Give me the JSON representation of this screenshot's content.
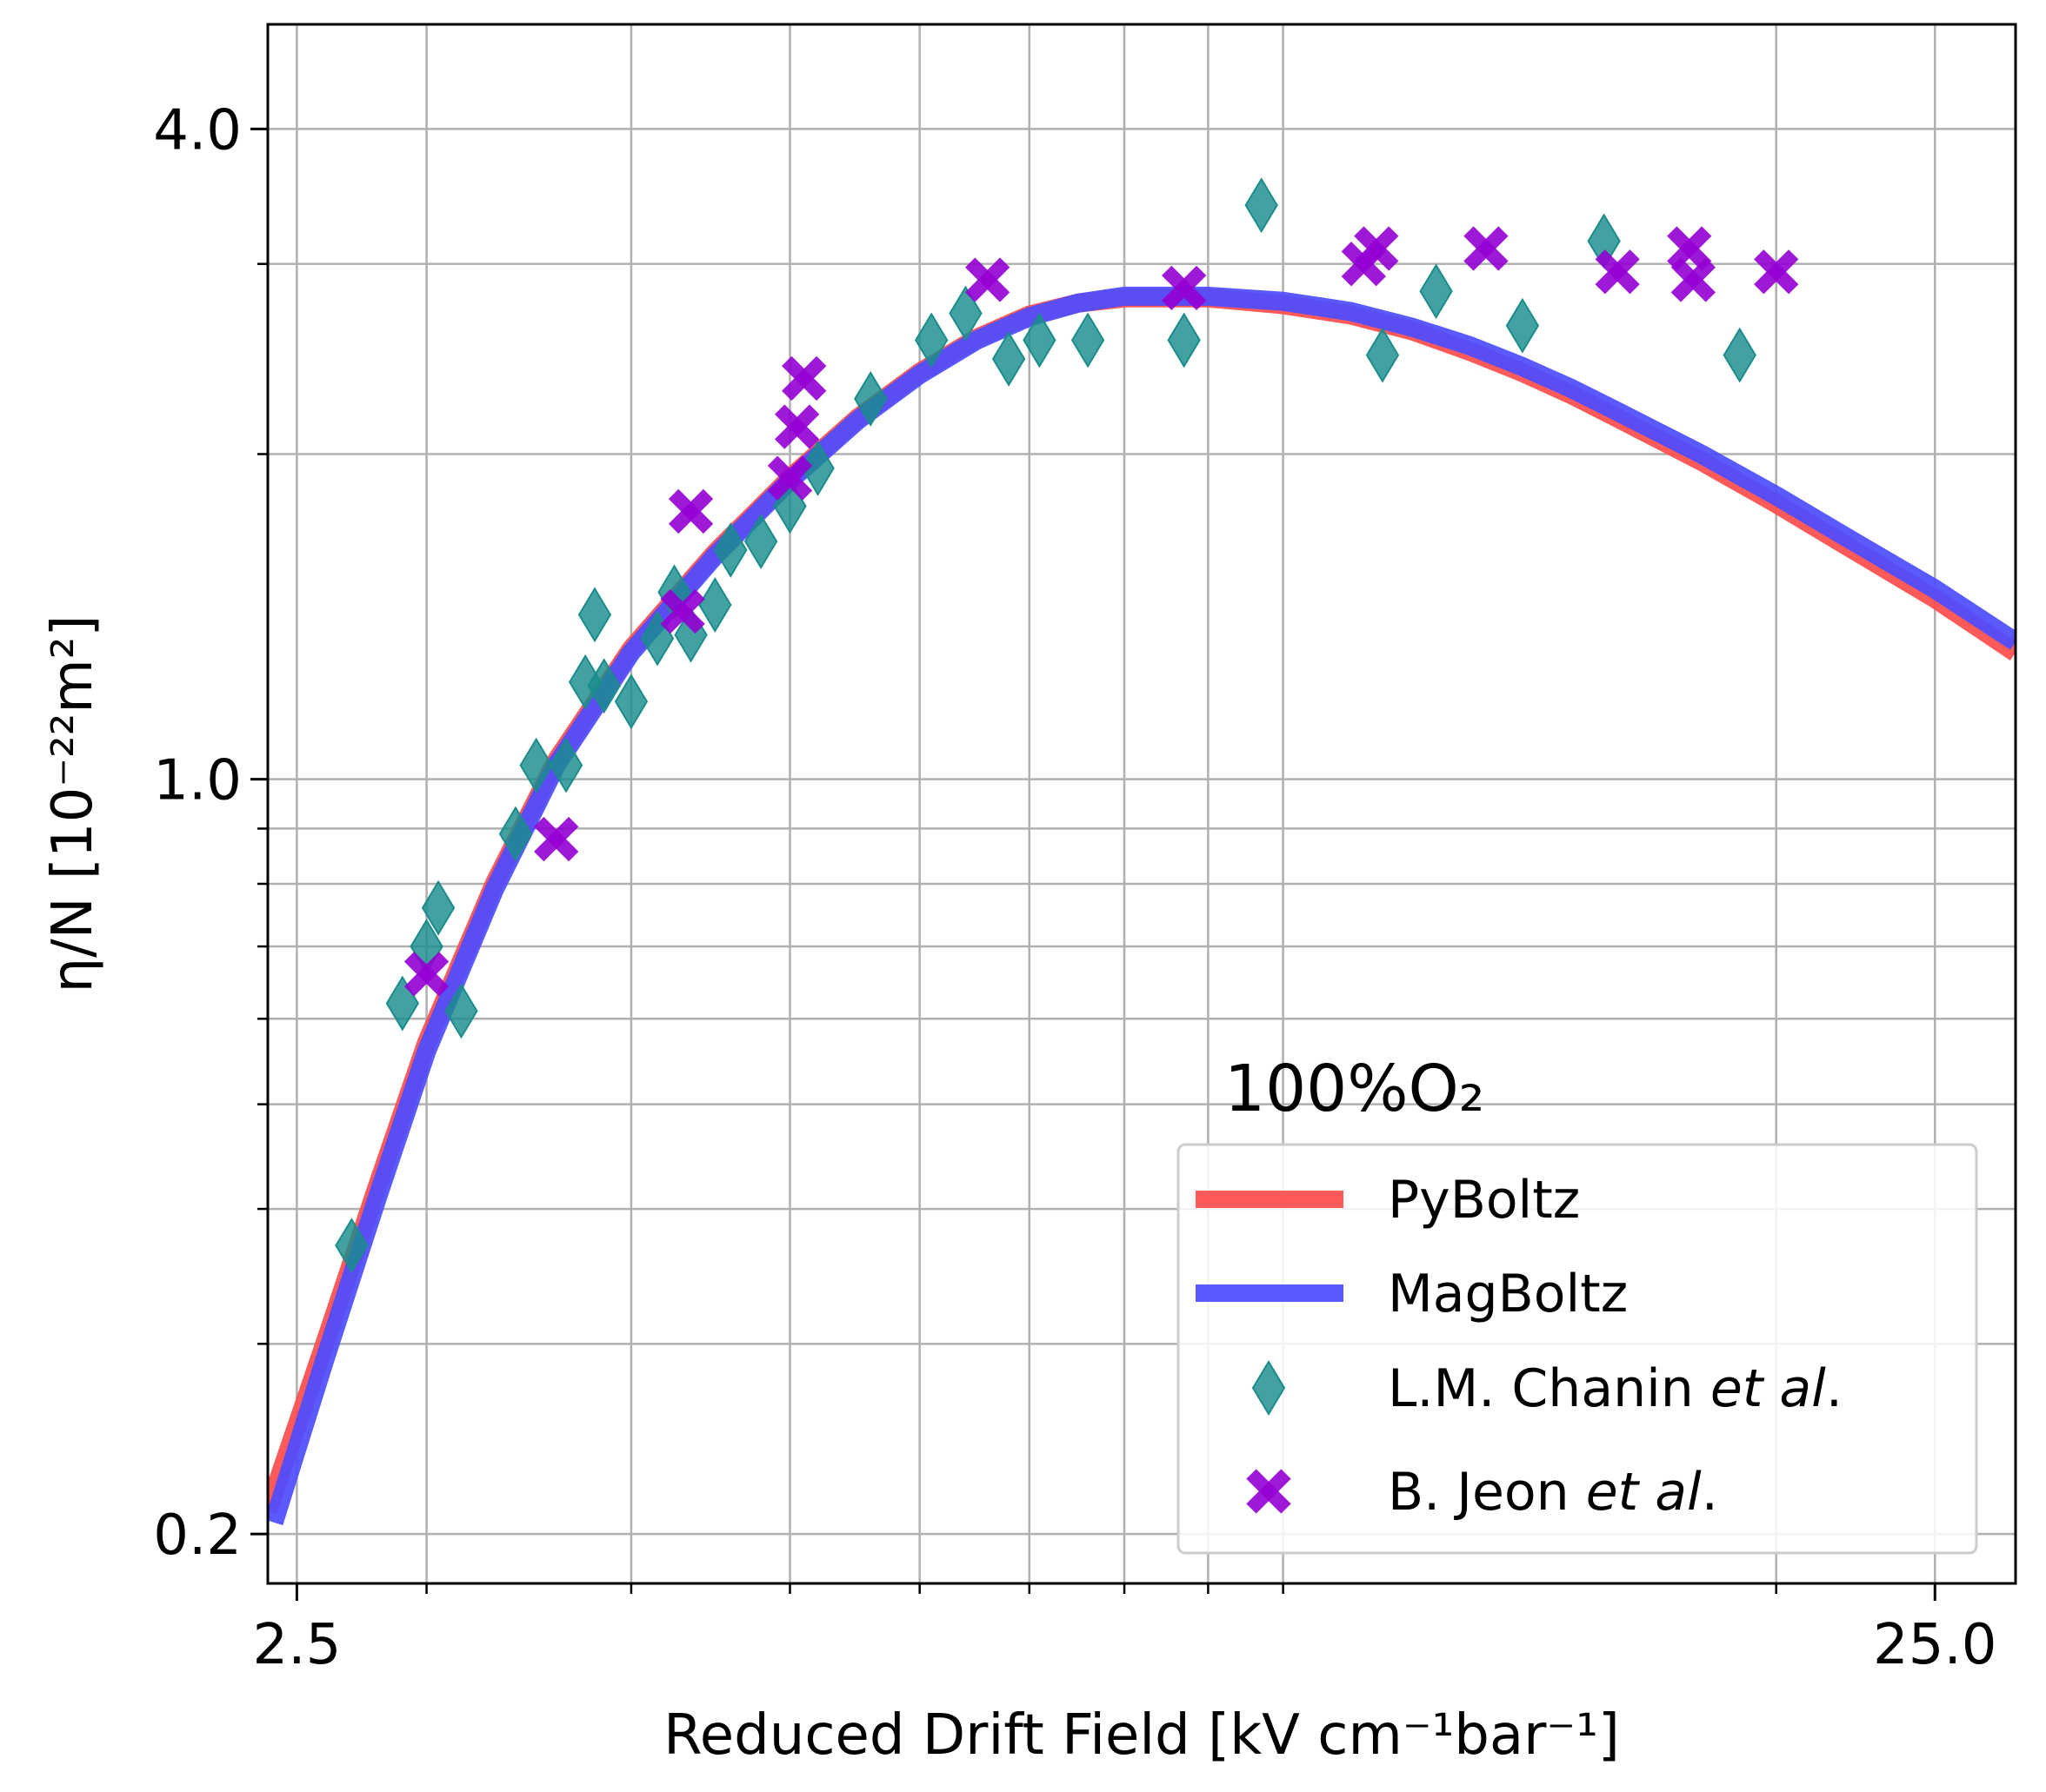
{
  "chart_data": {
    "type": "line",
    "xlabel": "Reduced Drift Field [kV cm⁻¹bar⁻¹]",
    "ylabel": "η/N [10⁻²²m²]",
    "x_scale": "log",
    "y_scale": "log",
    "xlim": [
      2.4,
      28.0
    ],
    "ylim": [
      0.18,
      5.0
    ],
    "x_ticks": [
      2.5,
      25.0
    ],
    "x_tick_labels": [
      "2.5",
      "25.0"
    ],
    "y_ticks": [
      0.2,
      1.0,
      4.0
    ],
    "y_tick_labels": [
      "0.2",
      "1.0",
      "4.0"
    ],
    "grid": true,
    "legend_position": "lower-right",
    "legend_title": "100%O₂",
    "series": [
      {
        "name": "PyBoltz",
        "kind": "line",
        "color": "#ff4c4c",
        "x": [
          2.4,
          2.6,
          2.8,
          3.0,
          3.3,
          3.6,
          4.0,
          4.5,
          5.0,
          5.5,
          6.0,
          6.5,
          7.0,
          7.5,
          8.0,
          9.0,
          10.0,
          11.0,
          12.0,
          13.0,
          14.0,
          15.0,
          16.0,
          18.0,
          20.0,
          22.0,
          25.0,
          28.0
        ],
        "y": [
          0.21,
          0.3,
          0.42,
          0.57,
          0.8,
          1.04,
          1.32,
          1.62,
          1.9,
          2.16,
          2.38,
          2.56,
          2.69,
          2.76,
          2.79,
          2.79,
          2.75,
          2.69,
          2.6,
          2.49,
          2.38,
          2.27,
          2.16,
          1.97,
          1.8,
          1.65,
          1.47,
          1.31
        ]
      },
      {
        "name": "MagBoltz",
        "kind": "line",
        "color": "#4c4cff",
        "x": [
          2.42,
          2.6,
          2.8,
          3.0,
          3.3,
          3.6,
          4.0,
          4.5,
          5.0,
          5.5,
          6.0,
          6.5,
          7.0,
          7.5,
          8.0,
          9.0,
          10.0,
          11.0,
          12.0,
          13.0,
          14.0,
          15.0,
          16.0,
          18.0,
          20.0,
          22.0,
          25.0,
          28.0
        ],
        "y": [
          0.205,
          0.29,
          0.41,
          0.56,
          0.79,
          1.03,
          1.31,
          1.61,
          1.89,
          2.15,
          2.37,
          2.55,
          2.68,
          2.76,
          2.8,
          2.8,
          2.77,
          2.71,
          2.62,
          2.52,
          2.41,
          2.3,
          2.19,
          2.0,
          1.83,
          1.68,
          1.5,
          1.34
        ]
      },
      {
        "name": "L.M. Chanin et al.",
        "kind": "scatter",
        "marker": "diamond",
        "color": "#1a8c8c",
        "x": [
          2.7,
          2.9,
          3.0,
          3.05,
          3.15,
          3.4,
          3.5,
          3.65,
          3.75,
          3.8,
          3.85,
          4.0,
          4.15,
          4.25,
          4.35,
          4.5,
          4.6,
          4.8,
          5.0,
          5.2,
          5.6,
          6.1,
          6.4,
          6.8,
          7.1,
          7.6,
          8.7,
          9.7,
          11.5,
          12.4,
          14.0,
          15.7,
          19.0
        ],
        "y": [
          0.37,
          0.62,
          0.7,
          0.76,
          0.61,
          0.89,
          1.03,
          1.03,
          1.23,
          1.42,
          1.22,
          1.18,
          1.35,
          1.49,
          1.36,
          1.45,
          1.63,
          1.66,
          1.79,
          1.94,
          2.25,
          2.55,
          2.7,
          2.45,
          2.55,
          2.55,
          2.55,
          3.4,
          2.47,
          2.83,
          2.63,
          3.15,
          2.47
        ]
      },
      {
        "name": "B. Jeon et al.",
        "kind": "scatter",
        "marker": "x",
        "color": "#9400d3",
        "x": [
          3.0,
          3.6,
          4.3,
          4.35,
          5.0,
          5.05,
          5.1,
          6.6,
          8.7,
          11.2,
          11.4,
          13.3,
          16.0,
          17.7,
          17.8,
          20.0
        ],
        "y": [
          0.66,
          0.88,
          1.43,
          1.77,
          1.9,
          2.12,
          2.35,
          2.9,
          2.85,
          3.0,
          3.1,
          3.1,
          2.95,
          3.1,
          2.9,
          2.95
        ]
      }
    ]
  }
}
